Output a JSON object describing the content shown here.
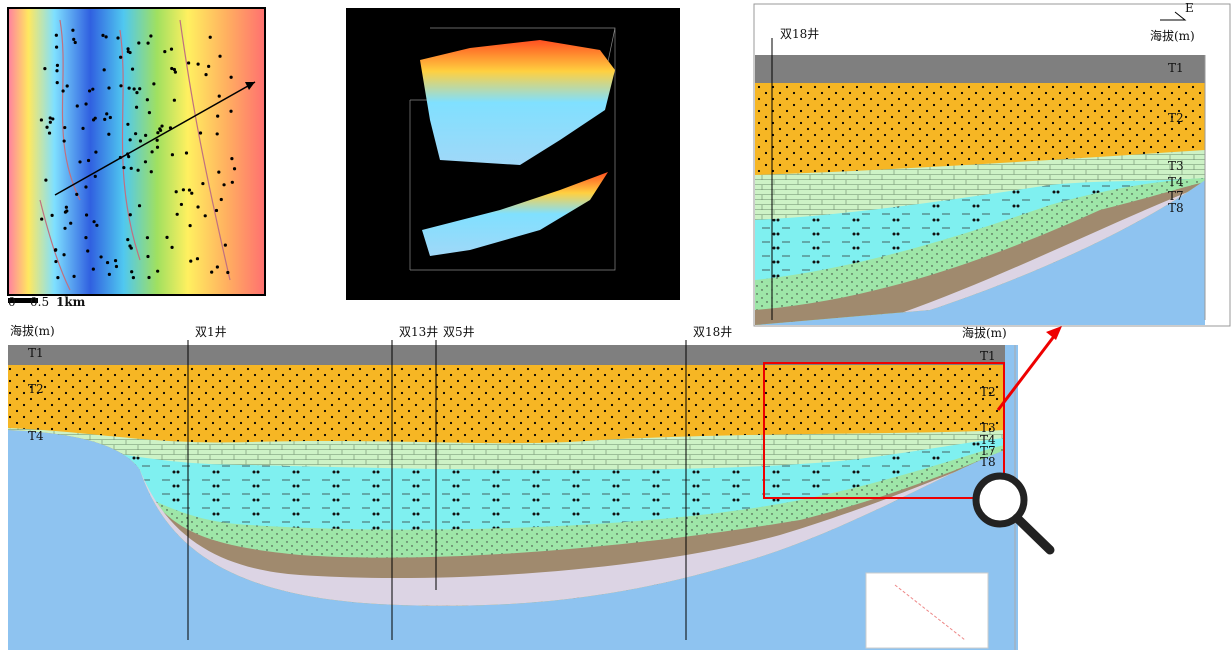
{
  "map": {
    "scale_labels": [
      "0",
      "0.5",
      "1km"
    ]
  },
  "section": {
    "elevation_left": "海拔(m)",
    "elevation_right": "海拔(m)",
    "wells": [
      "双1井",
      "双13井",
      "双5井",
      "双18井"
    ],
    "layers_left": [
      "T1",
      "T2",
      "T4"
    ],
    "layers_right": [
      "T1",
      "T2",
      "T3",
      "T4",
      "T7",
      "T8"
    ]
  },
  "inset": {
    "well": "双18井",
    "elevation_label": "海拔(m)",
    "direction": "E",
    "layers": [
      "T1",
      "T2",
      "T3",
      "T4",
      "T7",
      "T8"
    ]
  }
}
